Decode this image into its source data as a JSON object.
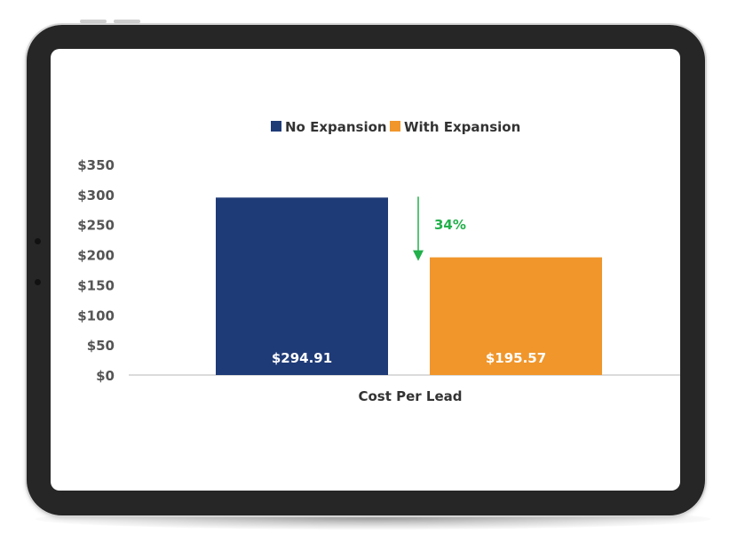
{
  "chart_data": {
    "type": "bar",
    "title": "",
    "categories": [
      "Cost Per Lead"
    ],
    "xlabel": "Cost Per Lead",
    "ylabel": "",
    "ylim": [
      0,
      350
    ],
    "yticks": [
      0,
      50,
      100,
      150,
      200,
      250,
      300,
      350
    ],
    "ytick_labels": [
      "$0",
      "$50",
      "$100",
      "$150",
      "$200",
      "$250",
      "$300",
      "$350"
    ],
    "grid": false,
    "legend_position": "top",
    "series": [
      {
        "name": "No Expansion",
        "values": [
          294.91
        ],
        "data_label": "$294.91",
        "color": "#1f3b77"
      },
      {
        "name": "With Expansion",
        "values": [
          195.57
        ],
        "data_label": "$195.57",
        "color": "#f0962b"
      }
    ],
    "annotation": {
      "text": "34%",
      "color": "#22b04b"
    }
  },
  "device": {
    "frame_color": "#262626",
    "screen_color": "#ffffff"
  }
}
